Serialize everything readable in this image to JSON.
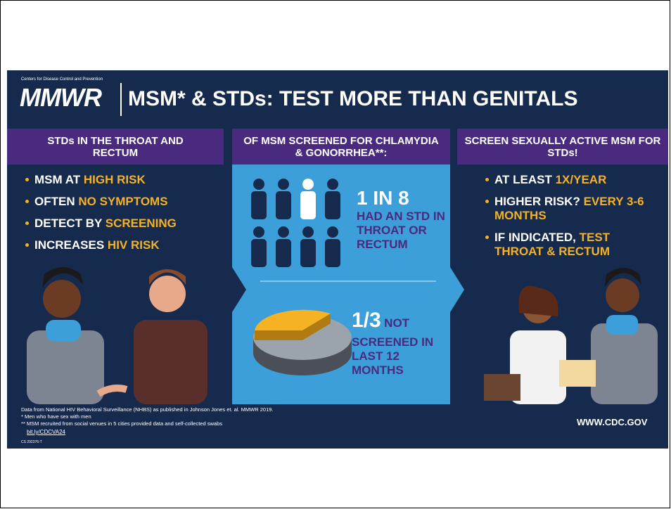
{
  "header": {
    "agency": "Centers for Disease Control and Prevention",
    "logo": "MMWR",
    "title": "MSM* & STDs: TEST MORE THAN GENITALS"
  },
  "columns": [
    {
      "heading": "STDs IN THE THROAT AND RECTUM",
      "bullets": [
        {
          "plain": "MSM AT",
          "highlight": "HIGH RISK"
        },
        {
          "plain": "OFTEN",
          "highlight": "NO SYMPTOMS"
        },
        {
          "plain": "DETECT BY",
          "highlight": "SCREENING"
        },
        {
          "plain": "INCREASES",
          "highlight": "HIV RISK"
        }
      ]
    },
    {
      "heading": "OF MSM SCREENED FOR CHLAMYDIA & GONORRHEA**:",
      "stat1": {
        "number": "1 IN 8",
        "text": "HAD AN STD IN THROAT OR RECTUM"
      },
      "stat2": {
        "number": "1/3",
        "small": "NOT",
        "text": "SCREENED IN LAST 12 MONTHS"
      }
    },
    {
      "heading": "SCREEN SEXUALLY ACTIVE MSM FOR STDs!",
      "bullets": [
        {
          "plain": "AT LEAST",
          "highlight": "1X/YEAR"
        },
        {
          "plain": "HIGHER RISK?",
          "highlight": "EVERY 3-6 MONTHS"
        },
        {
          "plain": "IF INDICATED,",
          "highlight": "TEST THROAT & RECTUM"
        }
      ]
    }
  ],
  "footer": {
    "notes": [
      "Data from National HIV Behavioral Surveillance (NHBS) as published in Johnson Jones et. al. MMWR 2019.",
      "* Men who have sex with men",
      "** MSM recruited from social venues in 5 cities provided data and self-collected swabs"
    ],
    "link": "bit.ly/CDCVA24",
    "code": "CS 292376-T",
    "website": "WWW.CDC.GOV"
  }
}
